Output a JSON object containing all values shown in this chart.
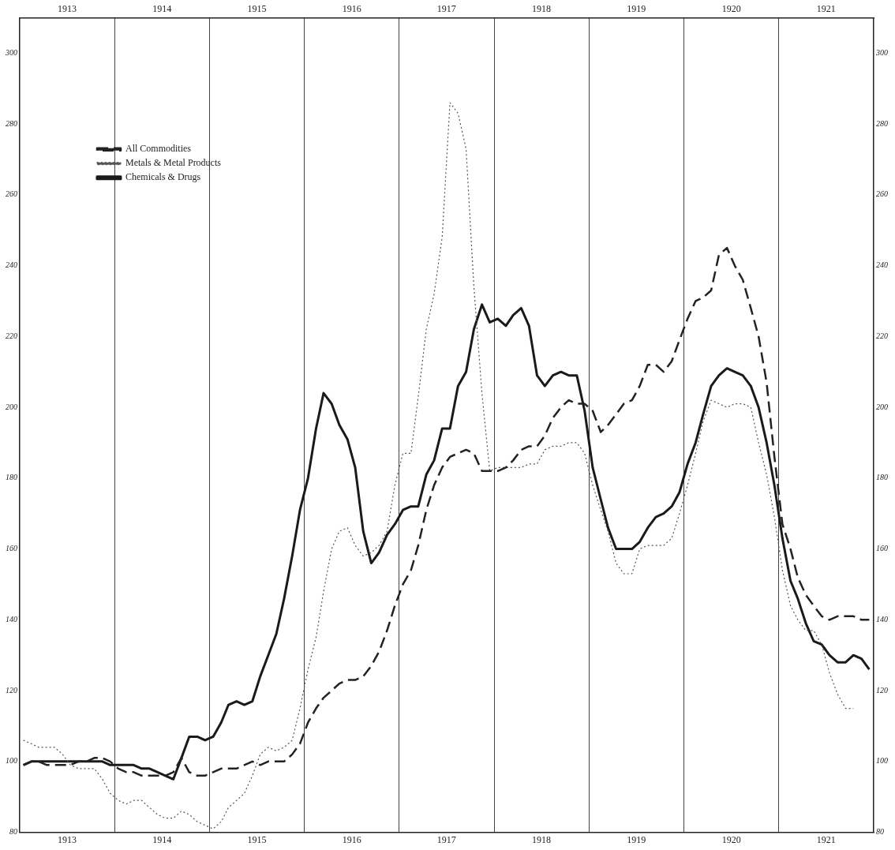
{
  "chart_data": {
    "type": "line",
    "x": [
      "1913-01-15",
      "1913-02-15",
      "1913-03-15",
      "1913-04-15",
      "1913-05-15",
      "1913-06-15",
      "1913-07-15",
      "1913-08-15",
      "1913-09-15",
      "1913-10-15",
      "1913-11-15",
      "1913-12-15",
      "1914-01-15",
      "1914-02-15",
      "1914-03-15",
      "1914-04-15",
      "1914-05-15",
      "1914-06-15",
      "1914-07-15",
      "1914-08-15",
      "1914-09-15",
      "1914-10-15",
      "1914-11-15",
      "1914-12-15",
      "1915-01-15",
      "1915-02-15",
      "1915-03-15",
      "1915-04-15",
      "1915-05-15",
      "1915-06-15",
      "1915-07-15",
      "1915-08-15",
      "1915-09-15",
      "1915-10-15",
      "1915-11-15",
      "1915-12-15",
      "1916-01-15",
      "1916-02-15",
      "1916-03-15",
      "1916-04-15",
      "1916-05-15",
      "1916-06-15",
      "1916-07-15",
      "1916-08-15",
      "1916-09-15",
      "1916-10-15",
      "1916-11-15",
      "1916-12-15",
      "1917-01-15",
      "1917-02-15",
      "1917-03-15",
      "1917-04-15",
      "1917-05-15",
      "1917-06-15",
      "1917-07-15",
      "1917-08-15",
      "1917-09-15",
      "1917-10-15",
      "1917-11-15",
      "1917-12-15",
      "1918-01-15",
      "1918-02-15",
      "1918-03-15",
      "1918-04-15",
      "1918-05-15",
      "1918-06-15",
      "1918-07-15",
      "1918-08-15",
      "1918-09-15",
      "1918-10-15",
      "1918-11-15",
      "1918-12-15",
      "1919-01-15",
      "1919-02-15",
      "1919-03-15",
      "1919-04-15",
      "1919-05-15",
      "1919-06-15",
      "1919-07-15",
      "1919-08-15",
      "1919-09-15",
      "1919-10-15",
      "1919-11-15",
      "1919-12-15",
      "1920-01-15",
      "1920-02-15",
      "1920-03-15",
      "1920-04-15",
      "1920-05-15",
      "1920-06-15",
      "1920-07-15",
      "1920-08-15",
      "1920-09-15",
      "1920-10-15",
      "1920-11-15",
      "1920-12-15",
      "1921-01-15",
      "1921-02-15",
      "1921-03-15",
      "1921-04-15",
      "1921-05-15",
      "1921-06-15",
      "1921-07-15",
      "1921-08-15",
      "1921-09-15",
      "1921-10-15",
      "1921-11-15",
      "1921-12-15"
    ],
    "series": [
      {
        "name": "All Commodities",
        "color": "#222222",
        "line_style": "dashed",
        "values": [
          99,
          100,
          100,
          99,
          99,
          99,
          99,
          100,
          100,
          101,
          101,
          100,
          98,
          97,
          97,
          96,
          96,
          96,
          96,
          97,
          101,
          97,
          96,
          96,
          97,
          98,
          98,
          98,
          99,
          100,
          99,
          100,
          100,
          100,
          102,
          105,
          111,
          115,
          118,
          120,
          122,
          123,
          123,
          124,
          127,
          131,
          137,
          144,
          150,
          154,
          161,
          171,
          178,
          183,
          186,
          187,
          188,
          187,
          182,
          182,
          182,
          183,
          185,
          188,
          189,
          189,
          192,
          197,
          200,
          202,
          201,
          201,
          199,
          193,
          195,
          198,
          201,
          202,
          206,
          212,
          212,
          210,
          213,
          219,
          225,
          230,
          231,
          233,
          243,
          245,
          240,
          236,
          228,
          220,
          207,
          186,
          167,
          160,
          152,
          147,
          144,
          141,
          140,
          141,
          141,
          141,
          140,
          140
        ]
      },
      {
        "name": "Metals & Metal Products",
        "color": "#555555",
        "line_style": "dotted",
        "values": [
          106,
          105,
          104,
          104,
          104,
          102,
          99,
          98,
          98,
          98,
          95,
          91,
          89,
          88,
          89,
          89,
          87,
          85,
          84,
          84,
          86,
          85,
          83,
          82,
          81,
          83,
          87,
          89,
          91,
          96,
          102,
          104,
          103,
          104,
          106,
          115,
          126,
          135,
          148,
          160,
          165,
          166,
          161,
          158,
          159,
          161,
          165,
          178,
          187,
          187,
          203,
          222,
          232,
          248,
          286,
          283,
          273,
          234,
          204,
          182,
          183,
          183,
          183,
          183,
          184,
          184,
          188,
          189,
          189,
          190,
          190,
          187,
          178,
          171,
          165,
          156,
          153,
          153,
          160,
          161,
          161,
          161,
          163,
          170,
          178,
          187,
          196,
          202,
          201,
          200,
          201,
          201,
          200,
          190,
          181,
          169,
          154,
          144,
          140,
          137,
          137,
          133,
          125,
          119,
          115,
          115,
          null,
          null
        ]
      },
      {
        "name": "Chemicals & Drugs",
        "color": "#1a1a1a",
        "line_style": "solid",
        "values": [
          99,
          100,
          100,
          100,
          100,
          100,
          100,
          100,
          100,
          100,
          100,
          99,
          99,
          99,
          99,
          98,
          98,
          97,
          96,
          95,
          101,
          107,
          107,
          106,
          107,
          111,
          116,
          117,
          116,
          117,
          124,
          130,
          136,
          146,
          158,
          171,
          180,
          194,
          204,
          201,
          195,
          191,
          183,
          165,
          156,
          159,
          164,
          167,
          171,
          172,
          172,
          181,
          185,
          194,
          194,
          206,
          210,
          222,
          229,
          224,
          225,
          223,
          226,
          228,
          223,
          209,
          206,
          209,
          210,
          209,
          209,
          199,
          183,
          174,
          166,
          160,
          160,
          160,
          162,
          166,
          169,
          170,
          172,
          176,
          184,
          190,
          198,
          206,
          209,
          211,
          210,
          209,
          206,
          200,
          190,
          178,
          163,
          151,
          146,
          139,
          134,
          133,
          130,
          128,
          128,
          130,
          129,
          126
        ]
      }
    ],
    "xlim": [
      "1913-01-01",
      "1922-01-01"
    ],
    "xticks": [
      {
        "value": "1913-07-02",
        "label": "1913"
      },
      {
        "value": "1914-01-01",
        "label": null
      },
      {
        "value": "1914-07-02",
        "label": "1914"
      },
      {
        "value": "1915-01-01",
        "label": null
      },
      {
        "value": "1915-07-02",
        "label": "1915"
      },
      {
        "value": "1916-01-01",
        "label": null
      },
      {
        "value": "1916-07-02",
        "label": "1916"
      },
      {
        "value": "1917-01-01",
        "label": null
      },
      {
        "value": "1917-07-02",
        "label": "1917"
      },
      {
        "value": "1918-01-01",
        "label": null
      },
      {
        "value": "1918-07-02",
        "label": "1918"
      },
      {
        "value": "1919-01-01",
        "label": null
      },
      {
        "value": "1919-07-02",
        "label": "1919"
      },
      {
        "value": "1920-01-01",
        "label": null
      },
      {
        "value": "1920-07-02",
        "label": "1920"
      },
      {
        "value": "1921-01-01",
        "label": null
      },
      {
        "value": "1921-07-02",
        "label": "1921"
      }
    ],
    "x2lim": [
      "1913-01-01",
      "1922-01-01"
    ],
    "x2ticks": [
      {
        "value": "1913-07-02",
        "label": "1913"
      },
      {
        "value": "1914-07-02",
        "label": "1914"
      },
      {
        "value": "1915-07-02",
        "label": "1915"
      },
      {
        "value": "1916-07-02",
        "label": "1916"
      },
      {
        "value": "1917-07-02",
        "label": "1917"
      },
      {
        "value": "1918-07-02",
        "label": "1918"
      },
      {
        "value": "1919-07-02",
        "label": "1919"
      },
      {
        "value": "1920-07-02",
        "label": "1920"
      },
      {
        "value": "1921-07-02",
        "label": "1921"
      }
    ],
    "ylim": [
      80,
      310
    ],
    "yticks": [
      80,
      100,
      120,
      140,
      160,
      180,
      200,
      220,
      240,
      260,
      280,
      300
    ],
    "y2lim": [
      80,
      310
    ],
    "y2ticks": [
      80,
      100,
      120,
      140,
      160,
      180,
      200,
      220,
      240,
      260,
      280,
      300
    ],
    "grid": "x",
    "legend": "top left"
  }
}
